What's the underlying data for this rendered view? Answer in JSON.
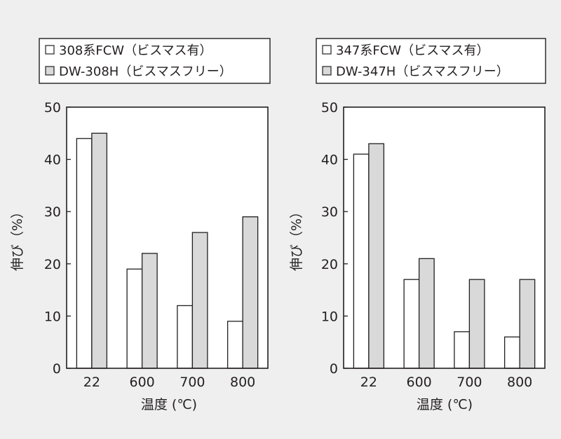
{
  "charts": [
    {
      "legend": [
        "308系FCW（ビスマス有）",
        "DW-308H（ビスマスフリー）"
      ],
      "ylabel": "伸び（%）",
      "xlabel": "温度 (℃)"
    },
    {
      "legend": [
        "347系FCW（ビスマス有）",
        "DW-347H（ビスマスフリー）"
      ],
      "ylabel": "伸び（%）",
      "xlabel": "温度 (℃)"
    }
  ],
  "chart_data": [
    {
      "type": "bar",
      "categories": [
        "22",
        "600",
        "700",
        "800"
      ],
      "series": [
        {
          "name": "308系FCW（ビスマス有）",
          "values": [
            44,
            19,
            12,
            9
          ],
          "color": "#ffffff"
        },
        {
          "name": "DW-308H（ビスマスフリー）",
          "values": [
            45,
            22,
            26,
            29
          ],
          "color": "#d9d9d9"
        }
      ],
      "ylabel": "伸び（%）",
      "xlabel": "温度 (℃)",
      "ylim": [
        0,
        50
      ],
      "yticks": [
        0,
        10,
        20,
        30,
        40,
        50
      ],
      "grid": false,
      "legend_position": "top"
    },
    {
      "type": "bar",
      "categories": [
        "22",
        "600",
        "700",
        "800"
      ],
      "series": [
        {
          "name": "347系FCW（ビスマス有）",
          "values": [
            41,
            17,
            7,
            6
          ],
          "color": "#ffffff"
        },
        {
          "name": "DW-347H（ビスマスフリー）",
          "values": [
            43,
            21,
            17,
            17
          ],
          "color": "#d9d9d9"
        }
      ],
      "ylabel": "伸び（%）",
      "xlabel": "温度 (℃)",
      "ylim": [
        0,
        50
      ],
      "yticks": [
        0,
        10,
        20,
        30,
        40,
        50
      ],
      "grid": false,
      "legend_position": "top"
    }
  ]
}
